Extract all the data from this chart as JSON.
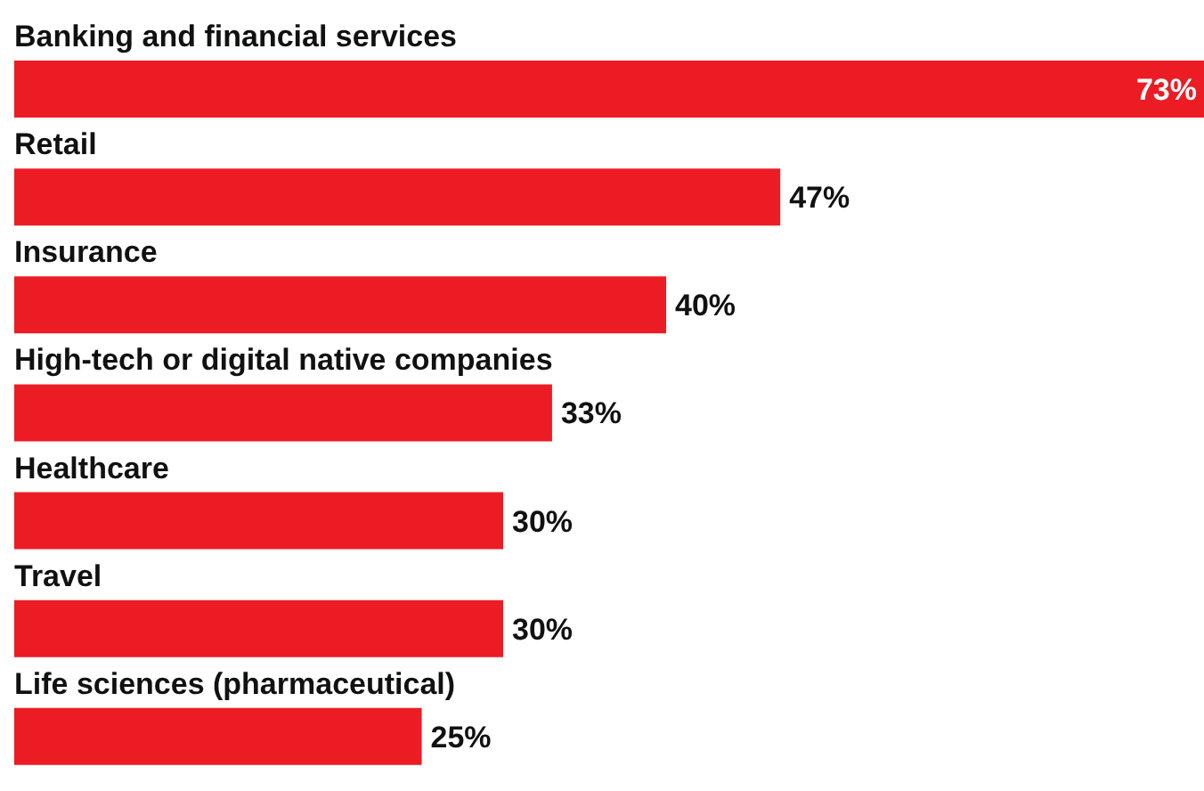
{
  "chart_data": {
    "type": "bar",
    "orientation": "horizontal",
    "categories": [
      "Banking and financial services",
      "Retail",
      "Insurance",
      "High-tech or digital native companies",
      "Healthcare",
      "Travel",
      "Life sciences (pharmaceutical)"
    ],
    "values": [
      73,
      47,
      40,
      33,
      30,
      30,
      25
    ],
    "value_labels": [
      "73%",
      "47%",
      "40%",
      "33%",
      "30%",
      "30%",
      "25%"
    ],
    "color": "#ec1c24"
  }
}
